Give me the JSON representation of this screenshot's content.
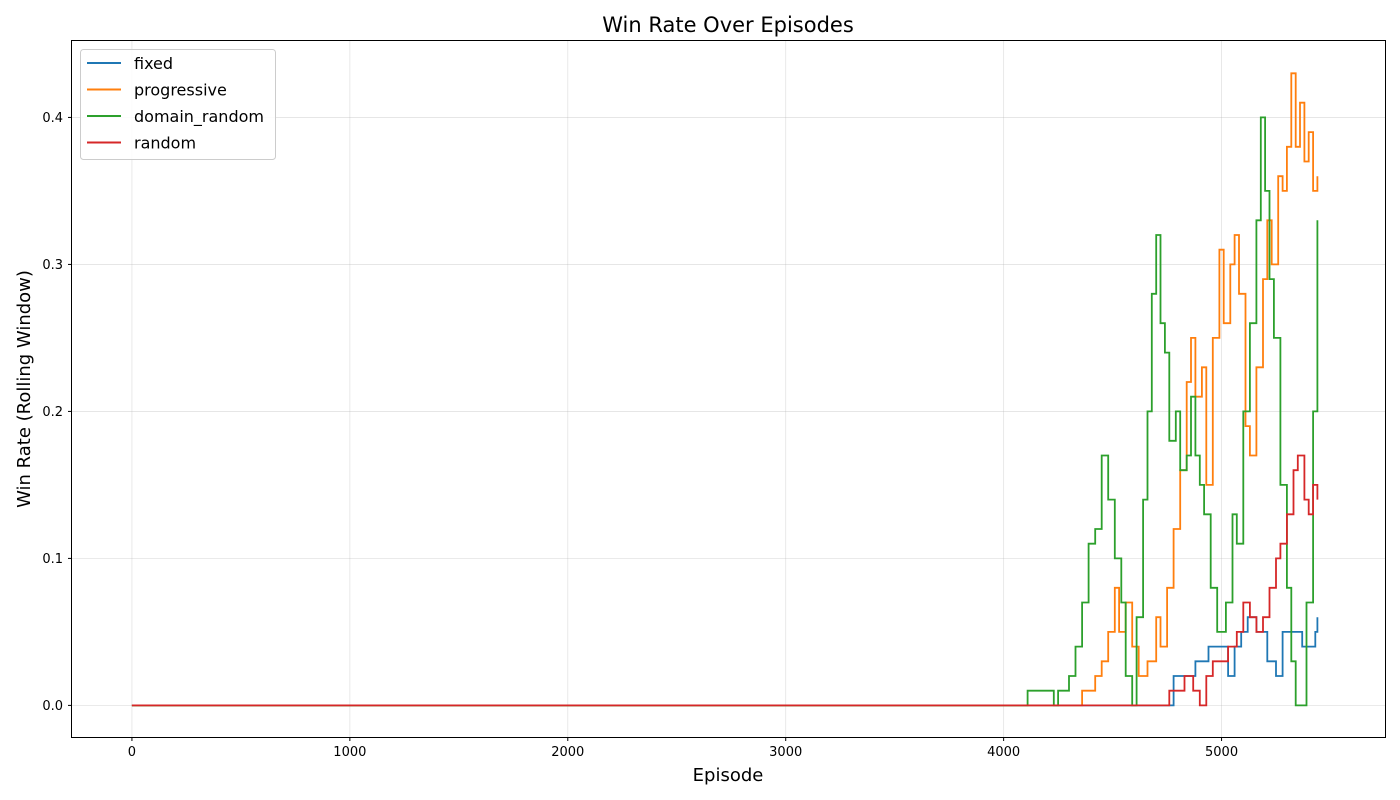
{
  "chart_data": {
    "type": "line",
    "title": "Win Rate Over Episodes",
    "xlabel": "Episode",
    "ylabel": "Win Rate (Rolling Window)",
    "xlim": [
      -275,
      5750
    ],
    "ylim": [
      -0.0215,
      0.452
    ],
    "xticks": [
      0,
      1000,
      2000,
      3000,
      4000,
      5000
    ],
    "xtick_labels": [
      "0",
      "1000",
      "2000",
      "3000",
      "4000",
      "5000"
    ],
    "yticks": [
      0.0,
      0.1,
      0.2,
      0.3,
      0.4
    ],
    "ytick_labels": [
      "0.0",
      "0.1",
      "0.2",
      "0.3",
      "0.4"
    ],
    "grid": true,
    "legend_position": "top-left",
    "series": [
      {
        "name": "fixed",
        "color": "#1f77b4",
        "points": [
          [
            0,
            0
          ],
          [
            4750,
            0
          ],
          [
            4780,
            0.02
          ],
          [
            4880,
            0.03
          ],
          [
            4940,
            0.04
          ],
          [
            5000,
            0.04
          ],
          [
            5030,
            0.02
          ],
          [
            5060,
            0.04
          ],
          [
            5090,
            0.05
          ],
          [
            5120,
            0.06
          ],
          [
            5160,
            0.05
          ],
          [
            5210,
            0.03
          ],
          [
            5250,
            0.02
          ],
          [
            5280,
            0.05
          ],
          [
            5320,
            0.05
          ],
          [
            5370,
            0.04
          ],
          [
            5410,
            0.04
          ],
          [
            5430,
            0.05
          ],
          [
            5440,
            0.06
          ]
        ]
      },
      {
        "name": "progressive",
        "color": "#ff7f0e",
        "points": [
          [
            0,
            0
          ],
          [
            4340,
            0
          ],
          [
            4360,
            0.01
          ],
          [
            4400,
            0.01
          ],
          [
            4420,
            0.02
          ],
          [
            4450,
            0.03
          ],
          [
            4480,
            0.05
          ],
          [
            4510,
            0.08
          ],
          [
            4530,
            0.05
          ],
          [
            4560,
            0.07
          ],
          [
            4590,
            0.04
          ],
          [
            4620,
            0.02
          ],
          [
            4660,
            0.03
          ],
          [
            4700,
            0.06
          ],
          [
            4720,
            0.04
          ],
          [
            4750,
            0.08
          ],
          [
            4780,
            0.12
          ],
          [
            4810,
            0.16
          ],
          [
            4840,
            0.22
          ],
          [
            4860,
            0.25
          ],
          [
            4880,
            0.21
          ],
          [
            4910,
            0.23
          ],
          [
            4930,
            0.15
          ],
          [
            4960,
            0.25
          ],
          [
            4990,
            0.31
          ],
          [
            5010,
            0.26
          ],
          [
            5040,
            0.3
          ],
          [
            5060,
            0.32
          ],
          [
            5080,
            0.28
          ],
          [
            5110,
            0.19
          ],
          [
            5130,
            0.17
          ],
          [
            5160,
            0.23
          ],
          [
            5190,
            0.29
          ],
          [
            5210,
            0.33
          ],
          [
            5230,
            0.3
          ],
          [
            5260,
            0.36
          ],
          [
            5280,
            0.35
          ],
          [
            5300,
            0.38
          ],
          [
            5320,
            0.43
          ],
          [
            5340,
            0.38
          ],
          [
            5360,
            0.41
          ],
          [
            5380,
            0.37
          ],
          [
            5400,
            0.39
          ],
          [
            5420,
            0.35
          ],
          [
            5440,
            0.36
          ]
        ]
      },
      {
        "name": "domain_random",
        "color": "#2ca02c",
        "points": [
          [
            0,
            0
          ],
          [
            4100,
            0
          ],
          [
            4110,
            0.01
          ],
          [
            4200,
            0.01
          ],
          [
            4230,
            0
          ],
          [
            4250,
            0.01
          ],
          [
            4300,
            0.02
          ],
          [
            4330,
            0.04
          ],
          [
            4360,
            0.07
          ],
          [
            4390,
            0.11
          ],
          [
            4420,
            0.12
          ],
          [
            4450,
            0.17
          ],
          [
            4480,
            0.14
          ],
          [
            4510,
            0.1
          ],
          [
            4540,
            0.07
          ],
          [
            4560,
            0.02
          ],
          [
            4590,
            0
          ],
          [
            4610,
            0.06
          ],
          [
            4640,
            0.14
          ],
          [
            4660,
            0.2
          ],
          [
            4680,
            0.28
          ],
          [
            4700,
            0.32
          ],
          [
            4720,
            0.26
          ],
          [
            4740,
            0.24
          ],
          [
            4760,
            0.18
          ],
          [
            4790,
            0.2
          ],
          [
            4810,
            0.16
          ],
          [
            4840,
            0.17
          ],
          [
            4860,
            0.21
          ],
          [
            4880,
            0.17
          ],
          [
            4900,
            0.15
          ],
          [
            4920,
            0.13
          ],
          [
            4950,
            0.08
          ],
          [
            4980,
            0.05
          ],
          [
            5000,
            0.05
          ],
          [
            5020,
            0.07
          ],
          [
            5050,
            0.13
          ],
          [
            5070,
            0.11
          ],
          [
            5100,
            0.2
          ],
          [
            5130,
            0.26
          ],
          [
            5160,
            0.33
          ],
          [
            5180,
            0.4
          ],
          [
            5200,
            0.35
          ],
          [
            5220,
            0.29
          ],
          [
            5240,
            0.25
          ],
          [
            5270,
            0.15
          ],
          [
            5300,
            0.08
          ],
          [
            5320,
            0.03
          ],
          [
            5340,
            0
          ],
          [
            5360,
            0
          ],
          [
            5390,
            0.07
          ],
          [
            5420,
            0.2
          ],
          [
            5440,
            0.33
          ]
        ]
      },
      {
        "name": "random",
        "color": "#d62728",
        "points": [
          [
            0,
            0
          ],
          [
            4740,
            0
          ],
          [
            4760,
            0.01
          ],
          [
            4800,
            0.01
          ],
          [
            4830,
            0.02
          ],
          [
            4870,
            0.01
          ],
          [
            4900,
            0
          ],
          [
            4930,
            0.02
          ],
          [
            4960,
            0.03
          ],
          [
            5000,
            0.03
          ],
          [
            5030,
            0.04
          ],
          [
            5070,
            0.05
          ],
          [
            5100,
            0.07
          ],
          [
            5130,
            0.06
          ],
          [
            5160,
            0.05
          ],
          [
            5190,
            0.06
          ],
          [
            5220,
            0.08
          ],
          [
            5250,
            0.1
          ],
          [
            5270,
            0.11
          ],
          [
            5300,
            0.13
          ],
          [
            5330,
            0.16
          ],
          [
            5350,
            0.17
          ],
          [
            5380,
            0.14
          ],
          [
            5400,
            0.13
          ],
          [
            5420,
            0.15
          ],
          [
            5440,
            0.14
          ]
        ]
      }
    ]
  }
}
